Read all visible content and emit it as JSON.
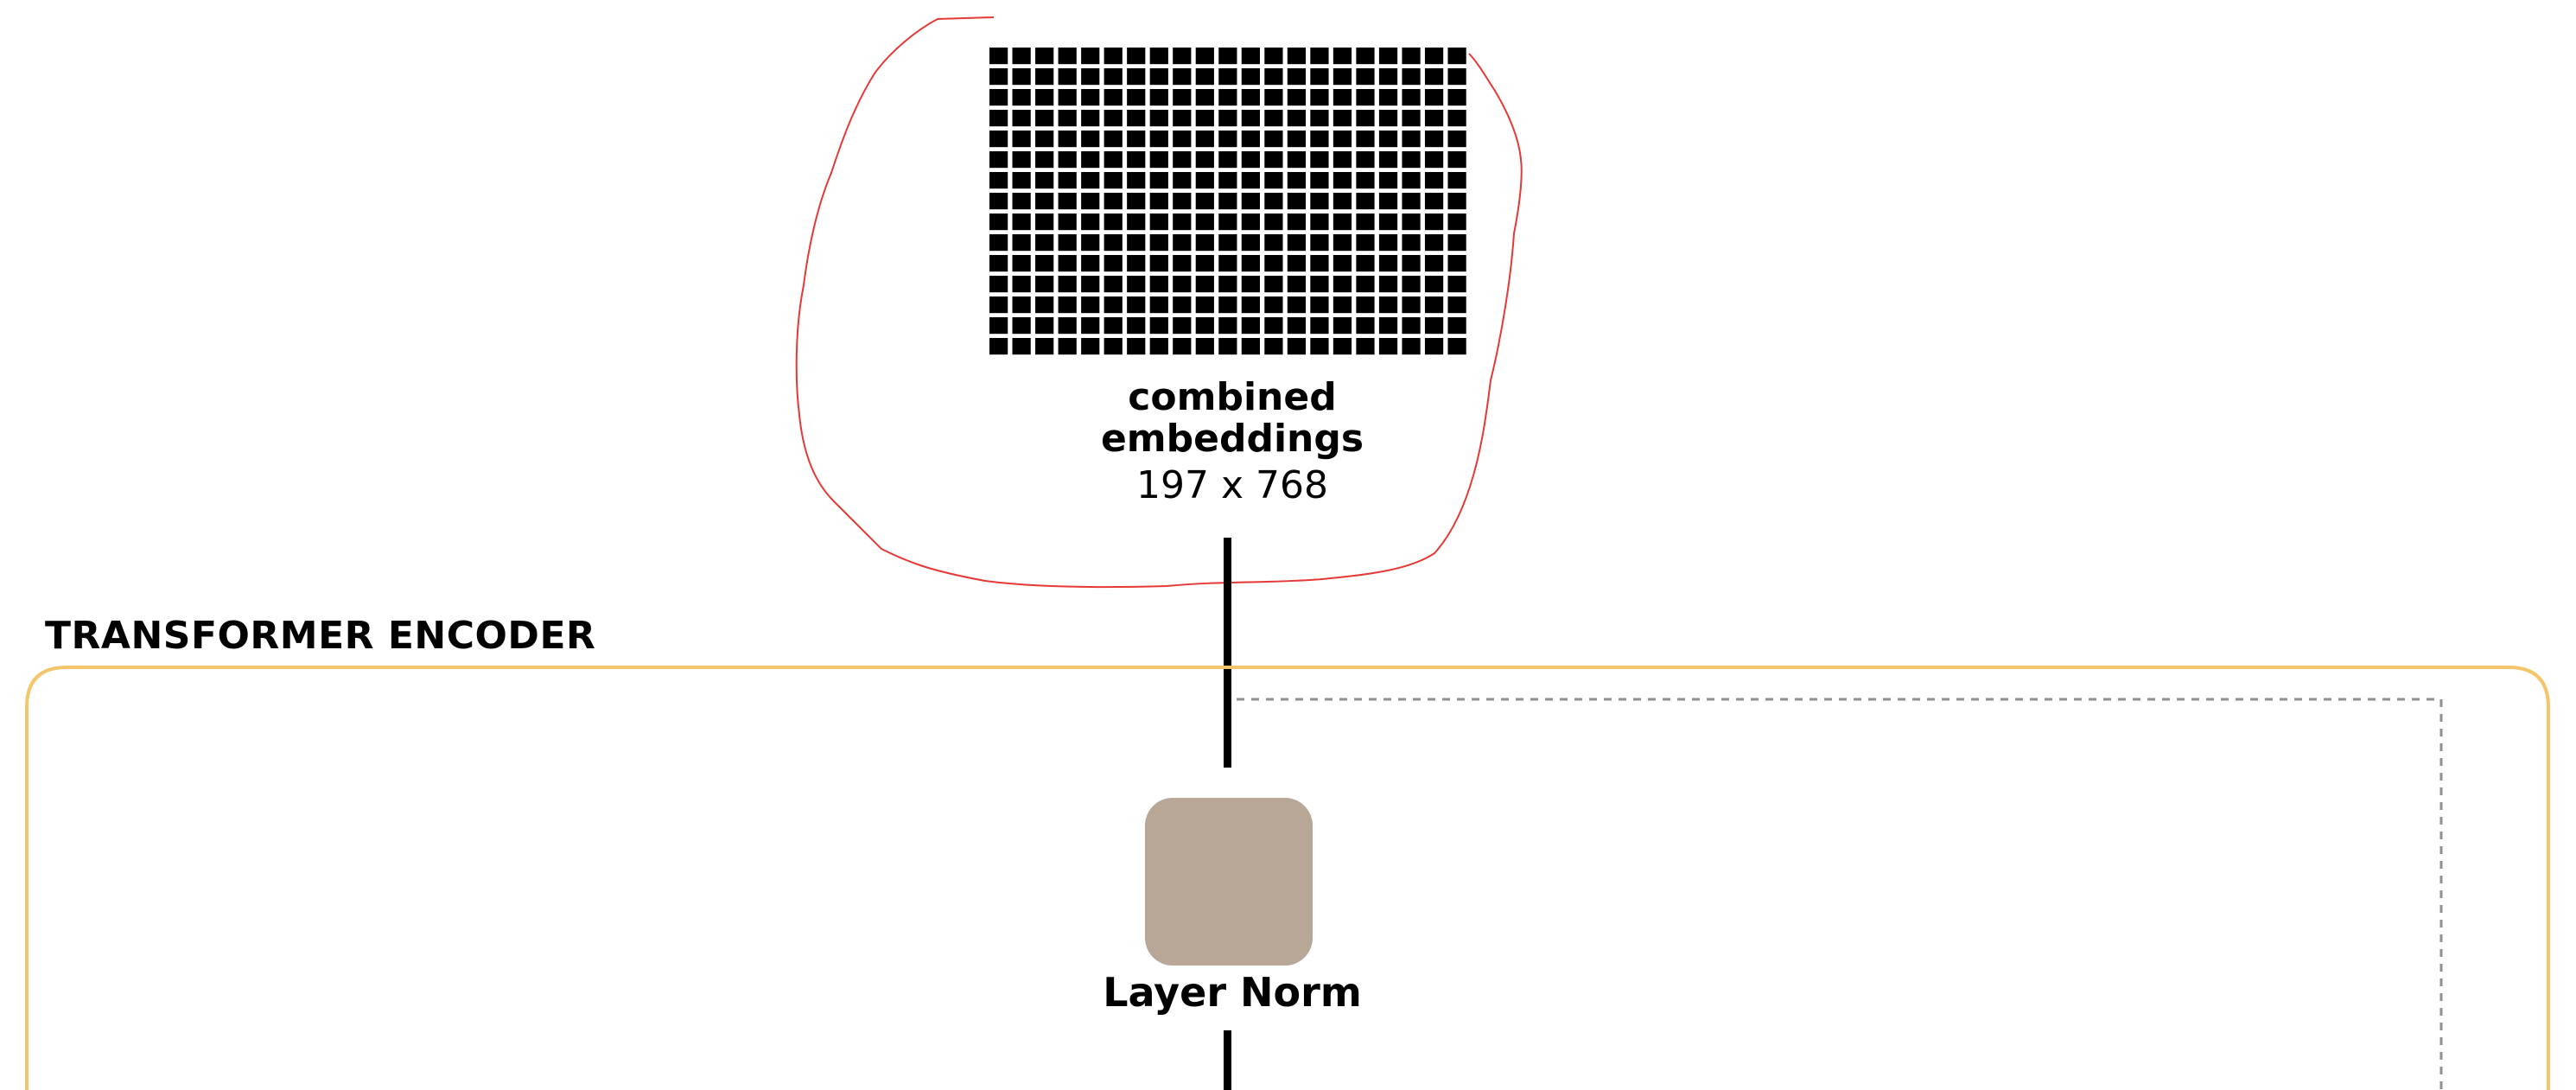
{
  "embeddings": {
    "title_line1": "combined",
    "title_line2": "embeddings",
    "dims": "197 x 768",
    "grid_rows": 15,
    "grid_cols": 21
  },
  "encoder": {
    "title": "TRANSFORMER ENCODER"
  },
  "layer_norm": {
    "label": "Layer Norm"
  },
  "colors": {
    "grid_cell": "#000000",
    "annotation_outline": "#e53935",
    "encoder_border": "#f5c56b",
    "layer_norm_fill": "#b8a797",
    "connector": "#000000",
    "skip_path": "#8f8f8f"
  }
}
